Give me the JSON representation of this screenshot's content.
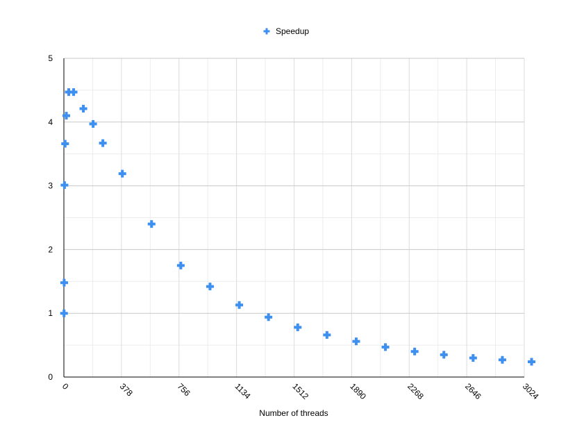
{
  "chart_data": {
    "type": "scatter",
    "title": "",
    "xlabel": "Number of threads",
    "ylabel": "",
    "xlim": [
      0,
      3024
    ],
    "ylim": [
      0,
      5
    ],
    "x_ticks": [
      "0",
      "378",
      "756",
      "1134",
      "1512",
      "1890",
      "2268",
      "2646",
      "3024"
    ],
    "y_ticks": [
      "0",
      "1",
      "2",
      "3",
      "4",
      "5"
    ],
    "grid": true,
    "legend": {
      "position": "top-center"
    },
    "series": [
      {
        "name": "Speedup",
        "color": "#3d8ff0",
        "marker": "plus",
        "points": [
          [
            1,
            1.0
          ],
          [
            2,
            1.48
          ],
          [
            4,
            3.01
          ],
          [
            8,
            3.66
          ],
          [
            16,
            4.1
          ],
          [
            32,
            4.47
          ],
          [
            64,
            4.47
          ],
          [
            128,
            4.21
          ],
          [
            192,
            3.97
          ],
          [
            256,
            3.67
          ],
          [
            384,
            3.19
          ],
          [
            576,
            2.4
          ],
          [
            768,
            1.75
          ],
          [
            960,
            1.42
          ],
          [
            1152,
            1.13
          ],
          [
            1344,
            0.94
          ],
          [
            1536,
            0.78
          ],
          [
            1728,
            0.66
          ],
          [
            1920,
            0.56
          ],
          [
            2112,
            0.47
          ],
          [
            2304,
            0.4
          ],
          [
            2496,
            0.35
          ],
          [
            2688,
            0.3
          ],
          [
            2880,
            0.27
          ],
          [
            3072,
            0.24
          ]
        ]
      }
    ]
  }
}
